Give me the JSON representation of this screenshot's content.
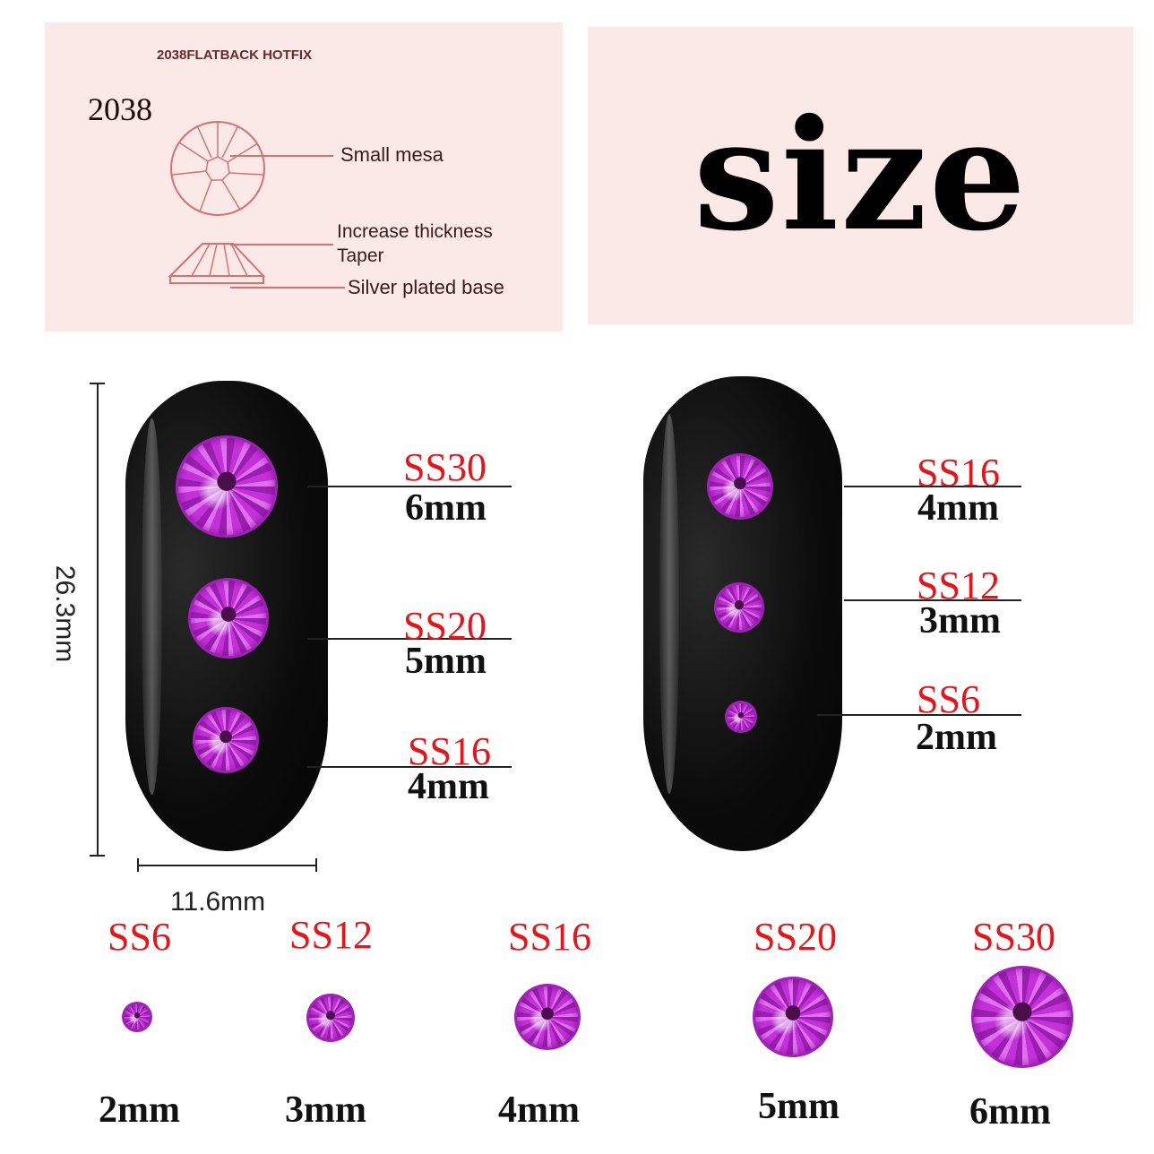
{
  "diagram_panel": {
    "header": "2038FLATBACK HOTFIX",
    "model": "2038",
    "labels": {
      "small_mesa": "Small mesa",
      "increase_thickness": "Increase thickness",
      "taper": "Taper",
      "silver_base": "Silver plated base"
    }
  },
  "title": "size",
  "dimensions": {
    "height": "26.3mm",
    "width": "11.6mm"
  },
  "left_nail": [
    {
      "code": "SS30",
      "mm": "6mm"
    },
    {
      "code": "SS20",
      "mm": "5mm"
    },
    {
      "code": "SS16",
      "mm": "4mm"
    }
  ],
  "right_nail": [
    {
      "code": "SS16",
      "mm": "4mm"
    },
    {
      "code": "SS12",
      "mm": "3mm"
    },
    {
      "code": "SS6",
      "mm": "2mm"
    }
  ],
  "size_row": [
    {
      "code": "SS6",
      "mm": "2mm"
    },
    {
      "code": "SS12",
      "mm": "3mm"
    },
    {
      "code": "SS16",
      "mm": "4mm"
    },
    {
      "code": "SS20",
      "mm": "5mm"
    },
    {
      "code": "SS30",
      "mm": "6mm"
    }
  ],
  "colors": {
    "label_red": "#e8141a",
    "gem_purple": "#b52ccc",
    "panel_pink": "#fbe9e8",
    "diagram_line": "#d87070"
  }
}
